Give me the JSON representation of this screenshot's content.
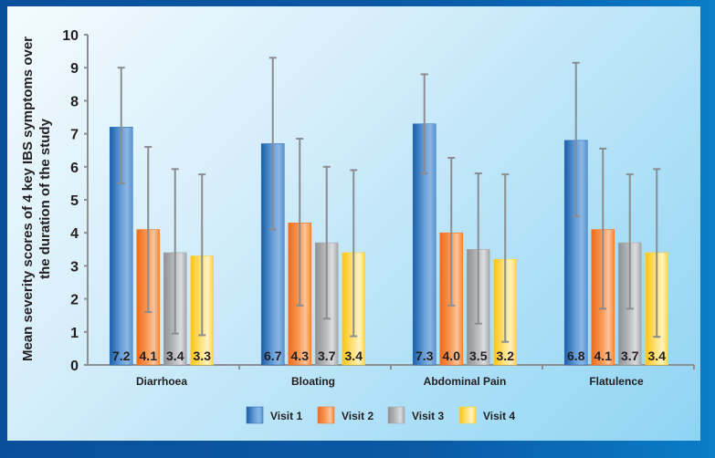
{
  "chart_data": {
    "type": "bar",
    "title": "",
    "xlabel": "",
    "ylabel": "Mean severity scores of 4 key IBS symptoms over the duration of the study",
    "ylabel_lines": [
      "Mean severity scores of 4 key IBS symptoms over",
      "the duration of the study"
    ],
    "ylim": [
      0,
      10
    ],
    "yticks": [
      0,
      1,
      2,
      3,
      4,
      5,
      6,
      7,
      8,
      9,
      10
    ],
    "categories": [
      "Diarrhoea",
      "Bloating",
      "Abdominal Pain",
      "Flatulence"
    ],
    "series": [
      {
        "name": "Visit 1",
        "color": "#2f76bd",
        "values": [
          7.2,
          6.7,
          7.3,
          6.8
        ],
        "labels": [
          "7.2",
          "6.7",
          "7.3",
          "6.8"
        ],
        "error_low": [
          5.5,
          4.1,
          5.8,
          4.5
        ],
        "error_high": [
          9.0,
          9.3,
          8.8,
          9.15
        ]
      },
      {
        "name": "Visit 2",
        "color": "#f47b2a",
        "values": [
          4.1,
          4.3,
          4.0,
          4.1
        ],
        "labels": [
          "4.1",
          "4.3",
          "4.0",
          "4.1"
        ],
        "error_low": [
          1.6,
          1.8,
          1.8,
          1.7
        ],
        "error_high": [
          6.6,
          6.85,
          6.27,
          6.55
        ]
      },
      {
        "name": "Visit 3",
        "color": "#a6a8ab",
        "values": [
          3.4,
          3.7,
          3.5,
          3.7
        ],
        "labels": [
          "3.4",
          "3.7",
          "3.5",
          "3.7"
        ],
        "error_low": [
          0.95,
          1.4,
          1.25,
          1.7
        ],
        "error_high": [
          5.93,
          6.0,
          5.8,
          5.77
        ]
      },
      {
        "name": "Visit 4",
        "color": "#ffd23a",
        "values": [
          3.3,
          3.4,
          3.2,
          3.4
        ],
        "labels": [
          "3.3",
          "3.4",
          "3.2",
          "3.4"
        ],
        "error_low": [
          0.9,
          0.87,
          0.7,
          0.85
        ],
        "error_high": [
          5.77,
          5.9,
          5.77,
          5.93
        ]
      }
    ],
    "grid": false,
    "legend_position": "bottom-center"
  }
}
